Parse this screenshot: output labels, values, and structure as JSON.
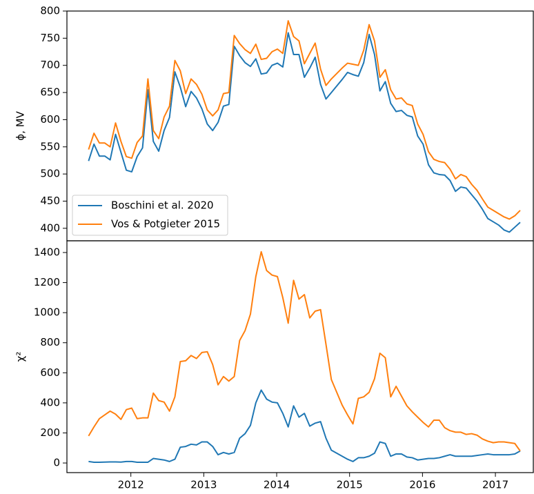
{
  "chart_data": [
    {
      "type": "line",
      "ylabel": "ϕ, MV",
      "x": [
        2011.42,
        2011.494,
        2011.568,
        2011.642,
        2011.716,
        2011.79,
        2011.864,
        2011.938,
        2012.012,
        2012.086,
        2012.16,
        2012.234,
        2012.308,
        2012.382,
        2012.456,
        2012.53,
        2012.604,
        2012.678,
        2012.752,
        2012.826,
        2012.9,
        2012.974,
        2013.048,
        2013.122,
        2013.196,
        2013.27,
        2013.344,
        2013.418,
        2013.492,
        2013.566,
        2013.64,
        2013.714,
        2013.788,
        2013.862,
        2013.936,
        2014.01,
        2014.084,
        2014.158,
        2014.232,
        2014.306,
        2014.38,
        2014.454,
        2014.528,
        2014.602,
        2014.676,
        2014.75,
        2014.824,
        2014.898,
        2014.972,
        2015.046,
        2015.12,
        2015.194,
        2015.268,
        2015.342,
        2015.416,
        2015.49,
        2015.564,
        2015.638,
        2015.712,
        2015.786,
        2015.86,
        2015.934,
        2016.008,
        2016.082,
        2016.156,
        2016.23,
        2016.304,
        2016.378,
        2016.452,
        2016.526,
        2016.6,
        2016.674,
        2016.748,
        2016.822,
        2016.896,
        2016.97,
        2017.044,
        2017.118,
        2017.192,
        2017.266,
        2017.34
      ],
      "series": [
        {
          "name": "Boschini et al. 2020",
          "color": "#1f77b4",
          "values": [
            524,
            555,
            533,
            533,
            526,
            573,
            540,
            507,
            504,
            532,
            548,
            655,
            560,
            542,
            580,
            604,
            688,
            660,
            624,
            652,
            640,
            620,
            592,
            580,
            595,
            625,
            628,
            735,
            718,
            705,
            698,
            712,
            684,
            686,
            700,
            704,
            697,
            760,
            720,
            720,
            678,
            695,
            715,
            665,
            638,
            650,
            662,
            674,
            687,
            683,
            680,
            705,
            757,
            720,
            653,
            670,
            630,
            615,
            617,
            608,
            605,
            570,
            555,
            517,
            502,
            499,
            498,
            488,
            468,
            476,
            474,
            462,
            450,
            435,
            418,
            412,
            406,
            397,
            393,
            402,
            411
          ]
        },
        {
          "name": "Vos & Potgieter 2015",
          "color": "#ff7f0e",
          "values": [
            545,
            575,
            557,
            557,
            550,
            594,
            560,
            532,
            529,
            558,
            570,
            675,
            580,
            565,
            605,
            625,
            709,
            690,
            648,
            675,
            665,
            647,
            618,
            607,
            618,
            648,
            650,
            755,
            740,
            729,
            722,
            739,
            711,
            713,
            725,
            730,
            722,
            782,
            753,
            745,
            703,
            722,
            741,
            693,
            663,
            675,
            685,
            695,
            704,
            702,
            700,
            728,
            775,
            745,
            678,
            692,
            655,
            638,
            640,
            629,
            626,
            592,
            573,
            541,
            527,
            523,
            521,
            509,
            491,
            499,
            495,
            481,
            470,
            454,
            439,
            433,
            427,
            421,
            417,
            423,
            433
          ]
        }
      ],
      "xlim": [
        2011.123,
        2017.52
      ],
      "ylim": [
        377,
        800
      ],
      "yticks": [
        400,
        450,
        500,
        550,
        600,
        650,
        700,
        750,
        800
      ],
      "legend": "lower left"
    },
    {
      "type": "line",
      "ylabel": "χ²",
      "x": [
        2011.42,
        2011.494,
        2011.568,
        2011.642,
        2011.716,
        2011.79,
        2011.864,
        2011.938,
        2012.012,
        2012.086,
        2012.16,
        2012.234,
        2012.308,
        2012.382,
        2012.456,
        2012.53,
        2012.604,
        2012.678,
        2012.752,
        2012.826,
        2012.9,
        2012.974,
        2013.048,
        2013.122,
        2013.196,
        2013.27,
        2013.344,
        2013.418,
        2013.492,
        2013.566,
        2013.64,
        2013.714,
        2013.788,
        2013.862,
        2013.936,
        2014.01,
        2014.084,
        2014.158,
        2014.232,
        2014.306,
        2014.38,
        2014.454,
        2014.528,
        2014.602,
        2014.676,
        2014.75,
        2014.824,
        2014.898,
        2014.972,
        2015.046,
        2015.12,
        2015.194,
        2015.268,
        2015.342,
        2015.416,
        2015.49,
        2015.564,
        2015.638,
        2015.712,
        2015.786,
        2015.86,
        2015.934,
        2016.008,
        2016.082,
        2016.156,
        2016.23,
        2016.304,
        2016.378,
        2016.452,
        2016.526,
        2016.6,
        2016.674,
        2016.748,
        2016.822,
        2016.896,
        2016.97,
        2017.044,
        2017.118,
        2017.192,
        2017.266,
        2017.34
      ],
      "series": [
        {
          "name": "Boschini et al. 2020",
          "color": "#1f77b4",
          "values": [
            10,
            5,
            5,
            6,
            7,
            7,
            6,
            10,
            10,
            5,
            5,
            5,
            30,
            25,
            20,
            10,
            25,
            105,
            110,
            125,
            120,
            140,
            140,
            110,
            55,
            70,
            60,
            70,
            165,
            195,
            250,
            400,
            485,
            425,
            405,
            400,
            330,
            240,
            380,
            305,
            330,
            245,
            265,
            275,
            165,
            85,
            65,
            45,
            25,
            10,
            35,
            35,
            45,
            65,
            140,
            130,
            45,
            60,
            60,
            40,
            35,
            20,
            25,
            30,
            30,
            35,
            45,
            55,
            45,
            45,
            45,
            45,
            50,
            55,
            60,
            55,
            55,
            55,
            55,
            60,
            80
          ]
        },
        {
          "name": "Vos & Potgieter 2015",
          "color": "#ff7f0e",
          "values": [
            180,
            240,
            295,
            320,
            345,
            325,
            290,
            355,
            365,
            295,
            300,
            300,
            465,
            415,
            405,
            345,
            440,
            675,
            680,
            715,
            695,
            735,
            740,
            655,
            520,
            575,
            545,
            575,
            815,
            880,
            990,
            1240,
            1405,
            1280,
            1250,
            1240,
            1100,
            930,
            1215,
            1090,
            1120,
            965,
            1010,
            1020,
            790,
            555,
            470,
            385,
            320,
            260,
            430,
            440,
            470,
            560,
            730,
            700,
            440,
            510,
            445,
            380,
            340,
            305,
            270,
            240,
            285,
            285,
            235,
            215,
            205,
            205,
            190,
            195,
            185,
            160,
            145,
            135,
            140,
            140,
            135,
            130,
            80
          ]
        }
      ],
      "xlim": [
        2011.123,
        2017.52
      ],
      "xticks": [
        2012,
        2013,
        2014,
        2015,
        2016,
        2017
      ],
      "ylim": [
        -64,
        1478
      ],
      "yticks": [
        0,
        200,
        400,
        600,
        800,
        1000,
        1200,
        1400
      ]
    }
  ]
}
